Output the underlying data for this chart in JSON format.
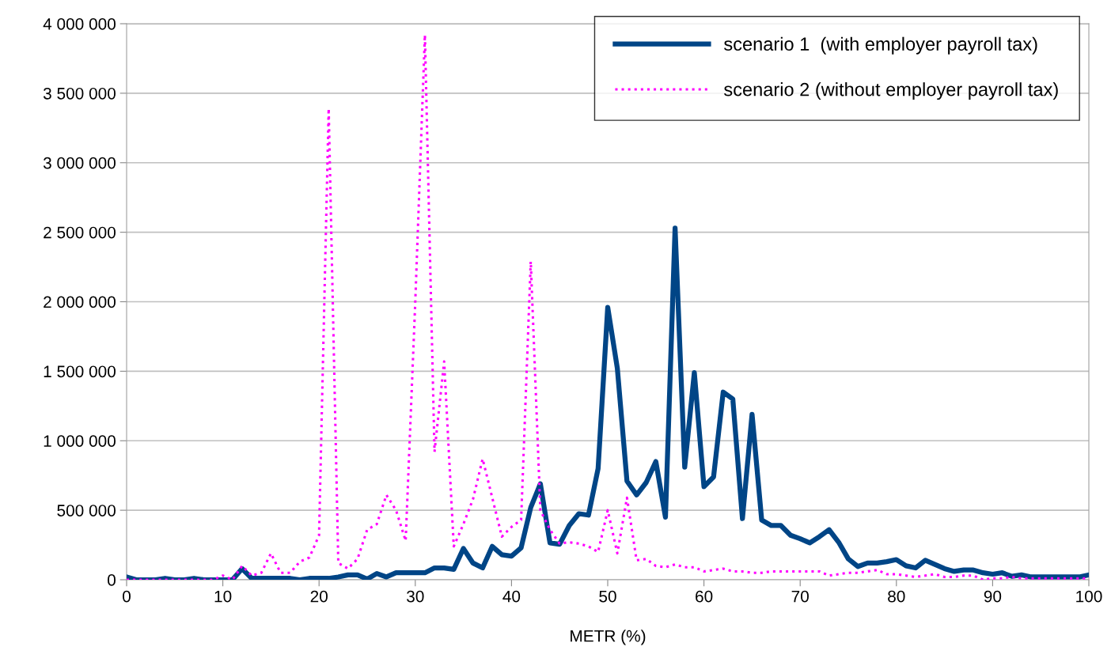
{
  "chart_data": {
    "type": "line",
    "xlabel": "METR (%)",
    "x": [
      0,
      1,
      2,
      3,
      4,
      5,
      6,
      7,
      8,
      9,
      10,
      11,
      12,
      13,
      14,
      15,
      16,
      17,
      18,
      19,
      20,
      21,
      22,
      23,
      24,
      25,
      26,
      27,
      28,
      29,
      30,
      31,
      32,
      33,
      34,
      35,
      36,
      37,
      38,
      39,
      40,
      41,
      42,
      43,
      44,
      45,
      46,
      47,
      48,
      49,
      50,
      51,
      52,
      53,
      54,
      55,
      56,
      57,
      58,
      59,
      60,
      61,
      62,
      63,
      64,
      65,
      66,
      67,
      68,
      69,
      70,
      71,
      72,
      73,
      74,
      75,
      76,
      77,
      78,
      79,
      80,
      81,
      82,
      83,
      84,
      85,
      86,
      87,
      88,
      89,
      90,
      91,
      92,
      93,
      94,
      95,
      96,
      97,
      98,
      99,
      100
    ],
    "series": [
      {
        "name": "scenario 1  (with employer payroll tax)",
        "color": "#004586",
        "line_style": "solid",
        "values": [
          20000,
          0,
          0,
          0,
          10000,
          0,
          0,
          10000,
          0,
          0,
          0,
          0,
          80000,
          10000,
          10000,
          10000,
          10000,
          10000,
          0,
          10000,
          10000,
          10000,
          20000,
          35000,
          35000,
          5000,
          45000,
          20000,
          50000,
          50000,
          50000,
          50000,
          85000,
          85000,
          75000,
          225000,
          120000,
          85000,
          240000,
          180000,
          170000,
          230000,
          520000,
          690000,
          265000,
          255000,
          390000,
          475000,
          465000,
          800000,
          1960000,
          1520000,
          710000,
          610000,
          700000,
          850000,
          450000,
          2530000,
          810000,
          1490000,
          670000,
          740000,
          1350000,
          1300000,
          440000,
          1190000,
          430000,
          390000,
          390000,
          320000,
          295000,
          265000,
          310000,
          360000,
          270000,
          150000,
          95000,
          120000,
          120000,
          130000,
          145000,
          100000,
          85000,
          140000,
          110000,
          80000,
          60000,
          70000,
          70000,
          50000,
          40000,
          50000,
          25000,
          35000,
          20000,
          20000,
          20000,
          20000,
          20000,
          20000,
          35000
        ]
      },
      {
        "name": "scenario 2 (without employer payroll tax)",
        "color": "#ff00ff",
        "line_style": "dotted",
        "values": [
          0,
          0,
          0,
          0,
          0,
          0,
          0,
          0,
          0,
          0,
          30000,
          0,
          100000,
          30000,
          50000,
          190000,
          50000,
          50000,
          130000,
          160000,
          320000,
          3390000,
          120000,
          80000,
          150000,
          360000,
          400000,
          610000,
          500000,
          280000,
          2000000,
          3920000,
          920000,
          1570000,
          240000,
          400000,
          580000,
          870000,
          590000,
          310000,
          380000,
          430000,
          2290000,
          500000,
          360000,
          260000,
          270000,
          260000,
          240000,
          200000,
          500000,
          190000,
          590000,
          140000,
          150000,
          100000,
          90000,
          110000,
          90000,
          90000,
          60000,
          70000,
          80000,
          60000,
          60000,
          50000,
          50000,
          60000,
          60000,
          60000,
          60000,
          60000,
          60000,
          30000,
          40000,
          50000,
          50000,
          60000,
          70000,
          40000,
          40000,
          30000,
          20000,
          30000,
          40000,
          20000,
          20000,
          30000,
          30000,
          0,
          10000,
          10000,
          20000,
          10000,
          10000,
          10000,
          10000,
          10000,
          10000,
          10000,
          10000
        ]
      }
    ],
    "xlim": [
      0,
      100
    ],
    "xticks": [
      0,
      10,
      20,
      30,
      40,
      50,
      60,
      70,
      80,
      90,
      100
    ],
    "ylim": [
      0,
      4000000
    ],
    "yticks": [
      {
        "value": 0,
        "label": "0"
      },
      {
        "value": 500000,
        "label": "500 000"
      },
      {
        "value": 1000000,
        "label": "1 000 000"
      },
      {
        "value": 1500000,
        "label": "1 500 000"
      },
      {
        "value": 2000000,
        "label": "2 000 000"
      },
      {
        "value": 2500000,
        "label": "2 500 000"
      },
      {
        "value": 3000000,
        "label": "3 000 000"
      },
      {
        "value": 3500000,
        "label": "3 500 000"
      },
      {
        "value": 4000000,
        "label": "4 000 000"
      }
    ],
    "grid": "y",
    "legend": "top right",
    "marker": "none"
  }
}
